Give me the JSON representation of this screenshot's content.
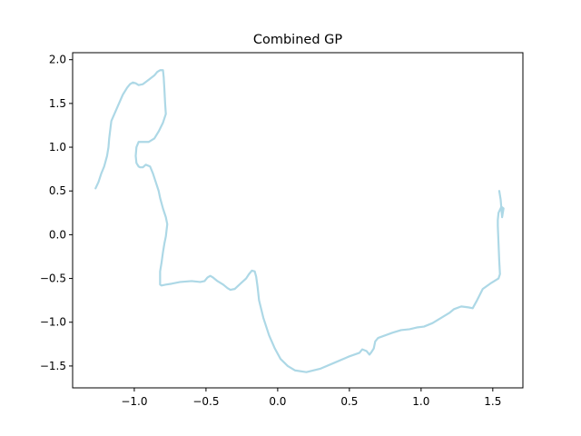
{
  "chart_data": {
    "type": "line",
    "title": "Combined GP",
    "xlabel": "",
    "ylabel": "",
    "xlim": [
      -1.43,
      1.71
    ],
    "ylim": [
      -1.75,
      2.08
    ],
    "xticks": [
      -1.0,
      -0.5,
      0.0,
      0.5,
      1.0,
      1.5
    ],
    "xtick_labels": [
      "−1.0",
      "−0.5",
      "0.0",
      "0.5",
      "1.0",
      "1.5"
    ],
    "yticks": [
      -1.5,
      -1.0,
      -0.5,
      0.0,
      0.5,
      1.0,
      1.5,
      2.0
    ],
    "ytick_labels": [
      "−1.5",
      "−1.0",
      "−0.5",
      "0.0",
      "0.5",
      "1.0",
      "1.5",
      "2.0"
    ],
    "grid": false,
    "series": [
      {
        "color": "#add8e6",
        "x": [
          -1.27,
          -1.25,
          -1.23,
          -1.21,
          -1.19,
          -1.18,
          -1.175,
          -1.16,
          -1.12,
          -1.08,
          -1.05,
          -1.03,
          -1.01,
          -0.99,
          -0.97,
          -0.94,
          -0.9,
          -0.86,
          -0.84,
          -0.82,
          -0.8,
          -0.795,
          -0.79,
          -0.785,
          -0.78,
          -0.8,
          -0.83,
          -0.86,
          -0.9,
          -0.94,
          -0.96,
          -0.97,
          -0.985,
          -0.99,
          -0.985,
          -0.97,
          -0.96,
          -0.94,
          -0.92,
          -0.89,
          -0.87,
          -0.85,
          -0.83,
          -0.82,
          -0.8,
          -0.78,
          -0.77,
          -0.775,
          -0.78,
          -0.79,
          -0.8,
          -0.81,
          -0.82,
          -0.82,
          -0.82,
          -0.81,
          -0.78,
          -0.74,
          -0.68,
          -0.6,
          -0.54,
          -0.51,
          -0.49,
          -0.47,
          -0.45,
          -0.42,
          -0.38,
          -0.35,
          -0.33,
          -0.3,
          -0.26,
          -0.22,
          -0.2,
          -0.18,
          -0.16,
          -0.15,
          -0.14,
          -0.13,
          -0.1,
          -0.06,
          -0.02,
          0.02,
          0.07,
          0.12,
          0.2,
          0.3,
          0.4,
          0.5,
          0.57,
          0.59,
          0.62,
          0.64,
          0.65,
          0.67,
          0.68,
          0.7,
          0.75,
          0.8,
          0.86,
          0.92,
          0.97,
          1.02,
          1.08,
          1.14,
          1.2,
          1.23,
          1.28,
          1.33,
          1.36,
          1.39,
          1.43,
          1.49,
          1.54,
          1.55,
          1.545,
          1.54,
          1.535,
          1.535,
          1.54,
          1.56,
          1.575,
          1.565,
          1.555,
          1.545
        ],
        "y": [
          0.53,
          0.6,
          0.7,
          0.78,
          0.9,
          1.0,
          1.1,
          1.3,
          1.45,
          1.6,
          1.68,
          1.72,
          1.74,
          1.73,
          1.71,
          1.72,
          1.77,
          1.82,
          1.86,
          1.88,
          1.88,
          1.8,
          1.66,
          1.5,
          1.38,
          1.28,
          1.18,
          1.1,
          1.06,
          1.06,
          1.06,
          1.06,
          1.0,
          0.9,
          0.82,
          0.78,
          0.77,
          0.77,
          0.8,
          0.78,
          0.7,
          0.6,
          0.5,
          0.42,
          0.3,
          0.2,
          0.12,
          0.05,
          -0.02,
          -0.1,
          -0.2,
          -0.32,
          -0.42,
          -0.5,
          -0.57,
          -0.58,
          -0.57,
          -0.56,
          -0.54,
          -0.53,
          -0.54,
          -0.53,
          -0.49,
          -0.47,
          -0.49,
          -0.53,
          -0.57,
          -0.61,
          -0.63,
          -0.62,
          -0.56,
          -0.5,
          -0.45,
          -0.41,
          -0.42,
          -0.48,
          -0.6,
          -0.75,
          -0.95,
          -1.15,
          -1.3,
          -1.42,
          -1.5,
          -1.55,
          -1.57,
          -1.53,
          -1.46,
          -1.39,
          -1.35,
          -1.31,
          -1.33,
          -1.37,
          -1.35,
          -1.3,
          -1.22,
          -1.18,
          -1.15,
          -1.12,
          -1.09,
          -1.08,
          -1.06,
          -1.05,
          -1.01,
          -0.95,
          -0.89,
          -0.85,
          -0.82,
          -0.83,
          -0.84,
          -0.75,
          -0.62,
          -0.55,
          -0.5,
          -0.45,
          -0.3,
          -0.1,
          0.1,
          0.17,
          0.25,
          0.32,
          0.3,
          0.2,
          0.4,
          0.5
        ]
      }
    ]
  }
}
